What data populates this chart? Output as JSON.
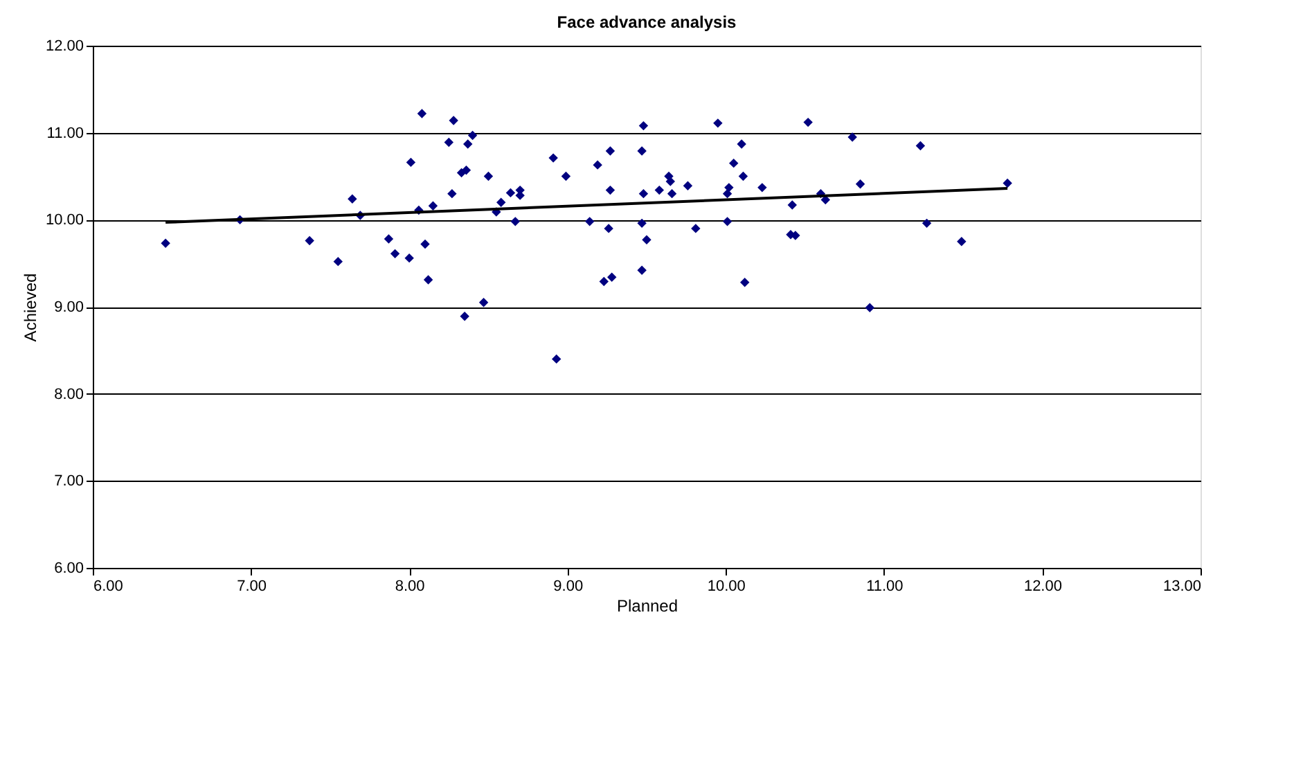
{
  "chart_data": {
    "type": "scatter",
    "title": "Face advance analysis",
    "xlabel": "Planned",
    "ylabel": "Achieved",
    "xlim": [
      6,
      13
    ],
    "xticks": [
      {
        "value": 6,
        "label": "6.00"
      },
      {
        "value": 7,
        "label": "7.00"
      },
      {
        "value": 8,
        "label": "8.00"
      },
      {
        "value": 9,
        "label": "9.00"
      },
      {
        "value": 10,
        "label": "10.00"
      },
      {
        "value": 11,
        "label": "11.00"
      },
      {
        "value": 12,
        "label": "12.00"
      },
      {
        "value": 13,
        "label": "13.00"
      }
    ],
    "ylim": [
      6,
      12
    ],
    "yticks": [
      {
        "value": 6,
        "label": "6.00"
      },
      {
        "value": 7,
        "label": "7.00"
      },
      {
        "value": 8,
        "label": "8.00"
      },
      {
        "value": 9,
        "label": "9.00"
      },
      {
        "value": 10,
        "label": "10.00"
      },
      {
        "value": 11,
        "label": "11.00"
      },
      {
        "value": 12,
        "label": "12.00"
      }
    ],
    "grid": "y",
    "series": [
      {
        "marker": "diamond",
        "color": "#000080",
        "x": [
          6.46,
          6.93,
          7.37,
          7.55,
          7.64,
          7.69,
          7.87,
          7.91,
          8.0,
          8.01,
          8.08,
          8.06,
          8.1,
          8.12,
          8.15,
          8.28,
          8.25,
          8.27,
          8.37,
          8.4,
          8.33,
          8.36,
          8.5,
          8.55,
          8.58,
          8.64,
          8.7,
          8.7,
          8.67,
          8.35,
          8.47,
          8.91,
          8.99,
          8.93,
          9.14,
          9.19,
          9.27,
          9.27,
          9.26,
          9.23,
          9.28,
          9.48,
          9.47,
          9.48,
          9.47,
          9.5,
          9.47,
          9.58,
          9.64,
          9.65,
          9.66,
          9.76,
          9.81,
          9.95,
          10.1,
          10.05,
          10.11,
          10.02,
          10.01,
          10.01,
          10.12,
          10.23,
          10.42,
          10.41,
          10.44,
          10.52,
          10.6,
          10.63,
          10.8,
          10.85,
          10.91,
          11.23,
          11.27,
          11.49,
          11.78
        ],
        "values": [
          9.73,
          10.0,
          9.76,
          9.52,
          10.24,
          10.05,
          9.78,
          9.61,
          9.56,
          10.66,
          11.22,
          10.11,
          9.72,
          9.31,
          10.16,
          11.14,
          10.89,
          10.3,
          10.87,
          10.97,
          10.54,
          10.57,
          10.5,
          10.09,
          10.2,
          10.31,
          10.34,
          10.28,
          9.98,
          8.89,
          9.05,
          10.71,
          10.5,
          8.4,
          9.98,
          10.63,
          10.79,
          10.34,
          9.9,
          9.29,
          9.34,
          11.08,
          10.79,
          10.3,
          9.96,
          9.77,
          9.42,
          10.34,
          10.5,
          10.44,
          10.3,
          10.39,
          9.9,
          11.11,
          10.87,
          10.65,
          10.5,
          10.37,
          10.3,
          9.98,
          9.28,
          10.37,
          10.17,
          9.83,
          9.82,
          11.12,
          10.3,
          10.23,
          10.95,
          10.41,
          8.99,
          10.85,
          9.96,
          9.75,
          10.42
        ]
      },
      {
        "type": "line",
        "color": "#000000",
        "x": [
          6.46,
          11.78
        ],
        "values": [
          9.97,
          10.36
        ]
      }
    ]
  }
}
